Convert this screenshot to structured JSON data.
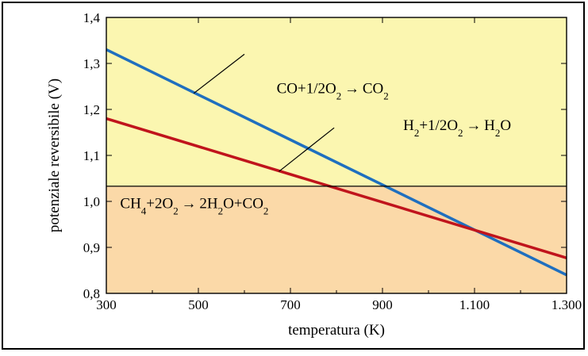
{
  "chart_data": {
    "type": "line",
    "xlabel": "temperatura (K)",
    "ylabel": "potenziale reversibile (V)",
    "xlim": [
      300,
      1300
    ],
    "ylim": [
      0.8,
      1.4
    ],
    "x_ticks": [
      300,
      500,
      700,
      900,
      1100,
      1300
    ],
    "x_tick_labels": [
      "300",
      "500",
      "700",
      "900",
      "1.100",
      "1.300"
    ],
    "y_ticks": [
      0.8,
      0.9,
      1.0,
      1.1,
      1.2,
      1.3,
      1.4
    ],
    "y_tick_labels": [
      "0,8",
      "0,9",
      "1,0",
      "1,1",
      "1,2",
      "1,3",
      "1,4"
    ],
    "grid": false,
    "regions": [
      {
        "y_from": 1.033,
        "y_to": 1.4,
        "color": "#fbf6b0"
      },
      {
        "y_from": 0.8,
        "y_to": 1.033,
        "color": "#fbd9a8"
      }
    ],
    "series": [
      {
        "x": [
          300,
          1300
        ],
        "values": [
          1.33,
          0.84
        ],
        "color": "#1f6fbf",
        "label_parts": [
          [
            "CO+1/2O",
            ""
          ],
          [
            "2",
            "sub"
          ],
          [
            " ",
            ""
          ],
          [
            "→",
            "arrow"
          ],
          [
            " CO",
            ""
          ],
          [
            "2",
            "sub"
          ]
        ],
        "label_anchor_x": 670,
        "label_anchor_y": 1.235,
        "leader": {
          "from": [
            490,
            1.235
          ],
          "to": [
            600,
            1.32
          ]
        }
      },
      {
        "x": [
          300,
          1300
        ],
        "values": [
          1.18,
          0.877
        ],
        "color": "#c0141c",
        "label_parts": [
          [
            "H",
            ""
          ],
          [
            "2",
            "sub"
          ],
          [
            "+1/2O",
            ""
          ],
          [
            "2",
            "sub"
          ],
          [
            " ",
            ""
          ],
          [
            "→",
            "arrow"
          ],
          [
            " H",
            ""
          ],
          [
            "2",
            "sub"
          ],
          [
            "O",
            ""
          ]
        ],
        "label_anchor_x": 945,
        "label_anchor_y": 1.155,
        "leader": {
          "from": [
            675,
            1.065
          ],
          "to": [
            795,
            1.16
          ]
        }
      },
      {
        "x": [
          300,
          1300
        ],
        "values": [
          1.033,
          1.033
        ],
        "color": "#000000",
        "label_parts": [
          [
            "CH",
            ""
          ],
          [
            "4",
            "sub"
          ],
          [
            "+2O",
            ""
          ],
          [
            "2",
            "sub"
          ],
          [
            " ",
            ""
          ],
          [
            "→",
            "arrow"
          ],
          [
            " 2H",
            ""
          ],
          [
            "2",
            "sub"
          ],
          [
            "O+CO",
            ""
          ],
          [
            "2",
            "sub"
          ]
        ],
        "label_anchor_x": 330,
        "label_anchor_y": 0.985
      }
    ]
  }
}
